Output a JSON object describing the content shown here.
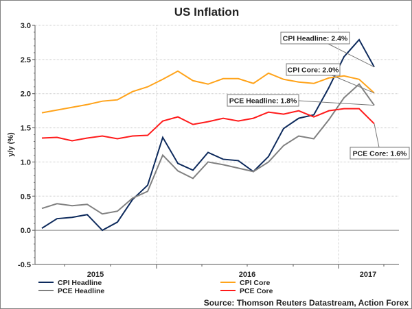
{
  "chart_data": {
    "type": "line",
    "title": "US Inflation",
    "ylabel": "y/y (%)",
    "xlabel": "",
    "ylim": [
      -0.5,
      3.0
    ],
    "yticks": [
      "3.0",
      "2.5",
      "2.0",
      "1.5",
      "1.0",
      "0.5",
      "0.0",
      "-0.5"
    ],
    "xtick_labels": [
      "2015",
      "2016",
      "2017"
    ],
    "grid": true,
    "legend_placement": "bottom",
    "x": [
      "2015-05",
      "2015-06",
      "2015-07",
      "2015-08",
      "2015-09",
      "2015-10",
      "2015-11",
      "2015-12",
      "2016-01",
      "2016-02",
      "2016-03",
      "2016-04",
      "2016-05",
      "2016-06",
      "2016-07",
      "2016-08",
      "2016-09",
      "2016-10",
      "2016-11",
      "2016-12",
      "2017-01",
      "2017-02",
      "2017-03"
    ],
    "series": [
      {
        "name": "CPI Headline",
        "color": "#0d2a5c",
        "values": [
          0.03,
          0.17,
          0.19,
          0.23,
          0.0,
          0.12,
          0.45,
          0.66,
          1.36,
          0.98,
          0.88,
          1.14,
          1.04,
          1.02,
          0.86,
          1.08,
          1.49,
          1.64,
          1.69,
          2.09,
          2.54,
          2.79,
          2.39
        ]
      },
      {
        "name": "PCE Headline",
        "color": "#808080",
        "values": [
          0.32,
          0.39,
          0.36,
          0.38,
          0.24,
          0.28,
          0.47,
          0.57,
          1.1,
          0.87,
          0.76,
          1.0,
          0.96,
          0.91,
          0.86,
          1.0,
          1.24,
          1.38,
          1.34,
          1.62,
          1.94,
          2.14,
          1.83
        ]
      },
      {
        "name": "CPI Core",
        "color": "#ffa31a",
        "values": [
          1.72,
          1.76,
          1.8,
          1.84,
          1.89,
          1.91,
          2.03,
          2.1,
          2.21,
          2.33,
          2.19,
          2.14,
          2.22,
          2.22,
          2.15,
          2.3,
          2.21,
          2.17,
          2.15,
          2.23,
          2.26,
          2.21,
          2.01
        ]
      },
      {
        "name": "PCE Core",
        "color": "#ff1a1a",
        "values": [
          1.35,
          1.36,
          1.31,
          1.35,
          1.38,
          1.34,
          1.38,
          1.39,
          1.6,
          1.66,
          1.55,
          1.59,
          1.64,
          1.6,
          1.64,
          1.73,
          1.7,
          1.75,
          1.66,
          1.75,
          1.78,
          1.78,
          1.56
        ]
      }
    ],
    "annotations": [
      {
        "text": "CPI Headline: 2.4%",
        "series": "CPI Headline"
      },
      {
        "text": "CPI Core: 2.0%",
        "series": "CPI Core"
      },
      {
        "text": "PCE Headline: 1.8%",
        "series": "PCE Headline"
      },
      {
        "text": "PCE Core: 1.6%",
        "series": "PCE Core"
      }
    ],
    "source": "Source: Thomson Reuters Datastream, Action Forex"
  }
}
